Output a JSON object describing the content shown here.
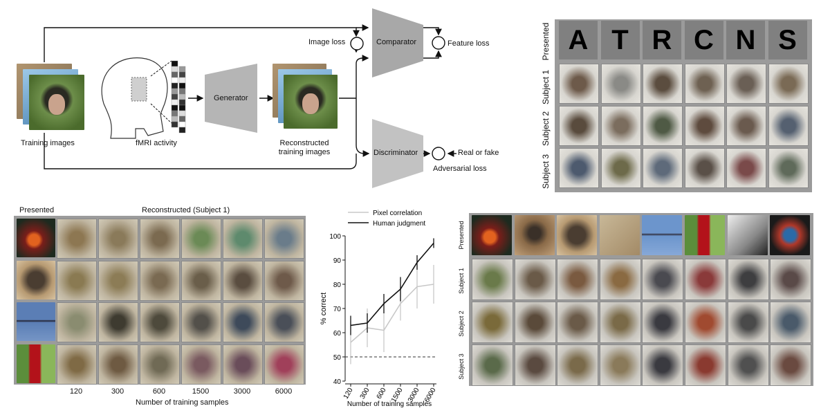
{
  "diagram": {
    "training_images": "Training images",
    "fmri_activity": "fMRI activity",
    "generator": "Generator",
    "reconstructed": "Reconstructed\ntraining images",
    "comparator": "Comparator",
    "discriminator": "Discriminator",
    "image_loss": "Image loss",
    "feature_loss": "Feature loss",
    "real_or_fake": "Real or fake",
    "adversarial_loss": "Adversarial loss"
  },
  "letters_panel": {
    "presented_label": "Presented",
    "subjects": [
      "Subject 1",
      "Subject 2",
      "Subject 3"
    ],
    "letters": [
      "A",
      "T",
      "R",
      "C",
      "N",
      "S"
    ]
  },
  "samples_panel": {
    "presented_label": "Presented",
    "reconstructed_label": "Reconstructed (Subject 1)",
    "columns": [
      "120",
      "300",
      "600",
      "1500",
      "3000",
      "6000"
    ],
    "xlabel": "Number of training samples"
  },
  "natural_panel": {
    "presented_label": "Presented",
    "subjects": [
      "Subject 1",
      "Subject 2",
      "Subject 3"
    ]
  },
  "chart_data": {
    "type": "line",
    "ylabel": "% correct",
    "xlabel": "Number of training samples",
    "categories": [
      "120",
      "300",
      "600",
      "1500",
      "3000",
      "6000"
    ],
    "ylim": [
      40,
      100
    ],
    "yticks": [
      "40",
      "50",
      "60",
      "70",
      "80",
      "90",
      "100"
    ],
    "chance_level": 50,
    "legend_position": "top-left",
    "series": [
      {
        "name": "Pixel correlation",
        "color": "#c8c8c8",
        "values": [
          56,
          62,
          61,
          72,
          79,
          80
        ],
        "err": [
          9,
          8,
          9,
          7,
          9,
          8
        ]
      },
      {
        "name": "Human judgment",
        "color": "#111111",
        "values": [
          63,
          64,
          72,
          78,
          89,
          97
        ],
        "err": [
          4,
          4,
          4,
          5,
          3,
          2
        ]
      }
    ]
  },
  "colors": {
    "block_gray": "#b5b5b5",
    "letter_bg": "#808080",
    "grid_bg": "#9b9b9b"
  }
}
